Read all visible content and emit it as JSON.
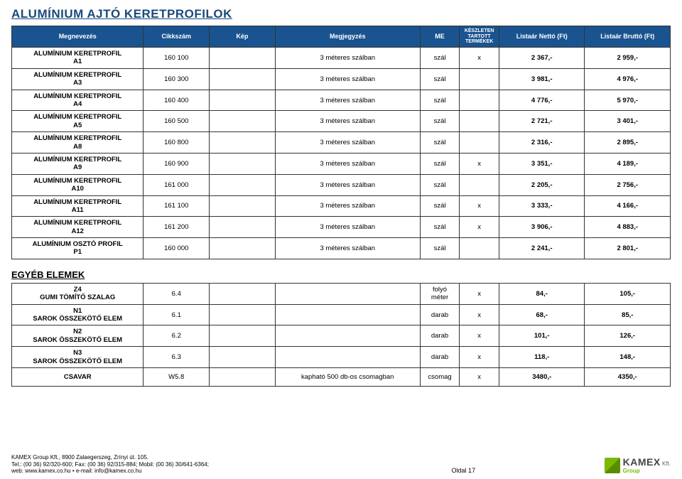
{
  "title": "ALUMÍNIUM AJTÓ KERETPROFILOK",
  "columns": {
    "name": "Megnevezés",
    "code": "Cikkszám",
    "image": "Kép",
    "note": "Megjegyzés",
    "me": "ME",
    "stock": "KÉSZLETEN TARTOTT TERMÉKEK",
    "net": "Listaár Nettó (Ft)",
    "gross": "Listaár Bruttó (Ft)"
  },
  "rows_main": [
    {
      "name": "ALUMÍNIUM KERETPROFIL\nA1",
      "code": "160 100",
      "note": "3 méteres szálban",
      "me": "szál",
      "stock": "x",
      "net": "2 367,-",
      "gross": "2 959,-"
    },
    {
      "name": "ALUMÍNIUM KERETPROFIL\nA3",
      "code": "160 300",
      "note": "3 méteres szálban",
      "me": "szál",
      "stock": "",
      "net": "3 981,-",
      "gross": "4 976,-"
    },
    {
      "name": "ALUMÍNIUM KERETPROFIL\nA4",
      "code": "160 400",
      "note": "3 méteres szálban",
      "me": "szál",
      "stock": "",
      "net": "4 776,-",
      "gross": "5 970,-"
    },
    {
      "name": "ALUMÍNIUM KERETPROFIL\nA5",
      "code": "160 500",
      "note": "3 méteres szálban",
      "me": "szál",
      "stock": "",
      "net": "2 721,-",
      "gross": "3 401,-"
    },
    {
      "name": "ALUMÍNIUM KERETPROFIL\nA8",
      "code": "160 800",
      "note": "3 méteres szálban",
      "me": "szál",
      "stock": "",
      "net": "2 316,-",
      "gross": "2 895,-"
    },
    {
      "name": "ALUMÍNIUM KERETPROFIL\nA9",
      "code": "160 900",
      "note": "3 méteres szálban",
      "me": "szál",
      "stock": "x",
      "net": "3 351,-",
      "gross": "4 189,-"
    },
    {
      "name": "ALUMÍNIUM KERETPROFIL\nA10",
      "code": "161 000",
      "note": "3 méteres szálban",
      "me": "szál",
      "stock": "",
      "net": "2 205,-",
      "gross": "2 756,-"
    },
    {
      "name": "ALUMÍNIUM KERETPROFIL\nA11",
      "code": "161 100",
      "note": "3 méteres szálban",
      "me": "szál",
      "stock": "x",
      "net": "3 333,-",
      "gross": "4 166,-"
    },
    {
      "name": "ALUMÍNIUM KERETPROFIL\nA12",
      "code": "161 200",
      "note": "3 méteres szálban",
      "me": "szál",
      "stock": "x",
      "net": "3 906,-",
      "gross": "4 883,-"
    },
    {
      "name": "ALUMÍNIUM OSZTÓ PROFIL\nP1",
      "code": "160 000",
      "note": "3 méteres szálban",
      "me": "szál",
      "stock": "",
      "net": "2 241,-",
      "gross": "2 801,-"
    }
  ],
  "section2_title": "EGYÉB ELEMEK",
  "rows_other": [
    {
      "name": "Z4\nGUMI TÖMÍTŐ SZALAG",
      "code": "6.4",
      "note": "",
      "me": "folyó\nméter",
      "stock": "x",
      "net": "84,-",
      "gross": "105,-"
    },
    {
      "name": "N1\nSAROK ÖSSZEKÖTŐ ELEM",
      "code": "6.1",
      "note": "",
      "me": "darab",
      "stock": "x",
      "net": "68,-",
      "gross": "85,-"
    },
    {
      "name": "N2\nSAROK ÖSSZEKÖTŐ ELEM",
      "code": "6.2",
      "note": "",
      "me": "darab",
      "stock": "x",
      "net": "101,-",
      "gross": "126,-"
    },
    {
      "name": "N3\nSAROK ÖSSZEKÖTŐ ELEM",
      "code": "6.3",
      "note": "",
      "me": "darab",
      "stock": "x",
      "net": "118,-",
      "gross": "148,-"
    },
    {
      "name": "CSAVAR",
      "code": "W5.8",
      "note": "kapható 500 db-os csomagban",
      "me": "csomag",
      "stock": "x",
      "net": "3480,-",
      "gross": "4350,-"
    }
  ],
  "footer": {
    "line1": "KAMEX Group Kft., 8900 Zalaegerszeg, Zrínyi út. 105.",
    "line2": "Tel.: (00 36) 92/320-600; Fax: (00 36) 92/315-884; Mobil: (00 36) 30/641-6364;",
    "line3": "web: www.kamex.co.hu • e-mail: info@kamex.co.hu",
    "page": "Oldal 17",
    "logo_main": "KAMEX",
    "logo_sub": "Group",
    "logo_suffix": "Kft."
  }
}
